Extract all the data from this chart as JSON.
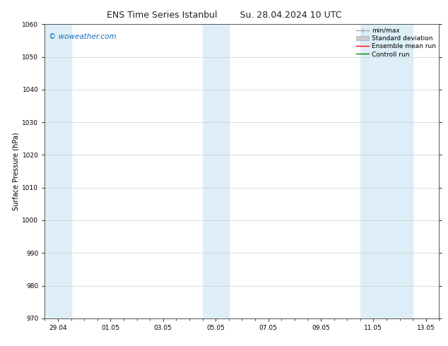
{
  "title_left": "ENS Time Series Istanbul",
  "title_right": "Su. 28.04.2024 10 UTC",
  "ylabel": "Surface Pressure (hPa)",
  "ylim": [
    970,
    1060
  ],
  "yticks": [
    970,
    980,
    990,
    1000,
    1010,
    1020,
    1030,
    1040,
    1050,
    1060
  ],
  "xtick_labels": [
    "29.04",
    "01.05",
    "03.05",
    "05.05",
    "07.05",
    "09.05",
    "11.05",
    "13.05"
  ],
  "xtick_positions": [
    0,
    2,
    4,
    6,
    8,
    10,
    12,
    14
  ],
  "watermark_text": "© woweather.com",
  "watermark_color": "#1a6fba",
  "watermark_fontsize": 7.5,
  "legend_fontsize": 6.5,
  "bg_color": "#ffffff",
  "plot_bg_color": "#ffffff",
  "grid_color": "#cccccc",
  "title_fontsize": 9,
  "axis_label_fontsize": 7,
  "tick_fontsize": 6.5,
  "xlim": [
    -0.5,
    14.5
  ],
  "shaded_color": "#ddeef8",
  "shaded_regions": [
    {
      "xmin": -0.5,
      "xmax": 0.5
    },
    {
      "xmin": 5.5,
      "xmax": 6.5
    },
    {
      "xmin": 11.5,
      "xmax": 12.5
    },
    {
      "xmin": 12.5,
      "xmax": 13.5
    }
  ]
}
